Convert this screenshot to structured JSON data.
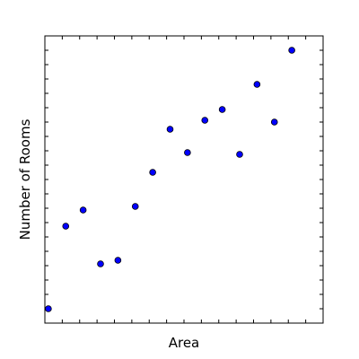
{
  "chart_data": {
    "type": "scatter",
    "xlabel": "Area",
    "ylabel": "Number of Rooms",
    "xlim": [
      0,
      16
    ],
    "ylim": [
      0,
      16
    ],
    "grid": false,
    "x_tick_count": 16,
    "y_tick_count": 20,
    "marker_color": "#0000ff",
    "marker_edge_color": "#000000",
    "points": [
      {
        "x": 0.2,
        "y": 0.8
      },
      {
        "x": 1.2,
        "y": 5.4
      },
      {
        "x": 2.2,
        "y": 6.3
      },
      {
        "x": 3.2,
        "y": 3.3
      },
      {
        "x": 4.2,
        "y": 3.5
      },
      {
        "x": 5.2,
        "y": 6.5
      },
      {
        "x": 6.2,
        "y": 8.4
      },
      {
        "x": 7.2,
        "y": 10.8
      },
      {
        "x": 8.2,
        "y": 9.5
      },
      {
        "x": 9.2,
        "y": 11.3
      },
      {
        "x": 10.2,
        "y": 11.9
      },
      {
        "x": 11.2,
        "y": 9.4
      },
      {
        "x": 12.2,
        "y": 13.3
      },
      {
        "x": 13.2,
        "y": 11.2
      },
      {
        "x": 14.2,
        "y": 15.2
      }
    ]
  }
}
